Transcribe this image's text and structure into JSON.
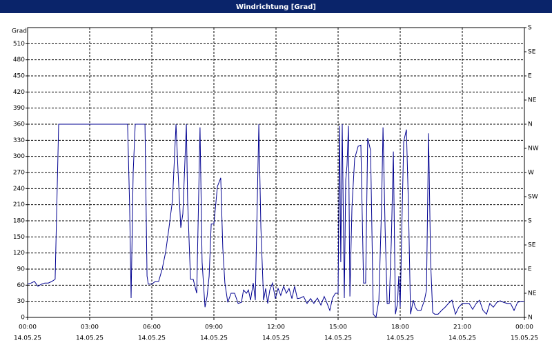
{
  "chart_data": {
    "type": "line",
    "title": "Windrichtung [Grad]",
    "y_label": "Grad",
    "x": [
      0,
      0.17,
      0.33,
      0.5,
      0.67,
      0.83,
      1,
      1.17,
      1.33,
      1.5,
      4.83,
      4.93,
      5,
      5.1,
      5.2,
      5.67,
      5.77,
      5.83,
      6,
      6.17,
      6.33,
      6.5,
      6.67,
      6.83,
      7,
      7.17,
      7.27,
      7.4,
      7.5,
      7.67,
      7.73,
      7.87,
      8,
      8.17,
      8.33,
      8.43,
      8.57,
      8.67,
      8.77,
      8.87,
      9,
      9.17,
      9.33,
      9.43,
      9.53,
      9.67,
      9.83,
      10,
      10.17,
      10.33,
      10.43,
      10.57,
      10.67,
      10.77,
      10.9,
      11,
      11.17,
      11.27,
      11.4,
      11.5,
      11.6,
      11.7,
      11.83,
      11.97,
      12.1,
      12.23,
      12.37,
      12.5,
      12.63,
      12.77,
      12.9,
      13.03,
      13.17,
      13.33,
      13.5,
      13.67,
      13.83,
      14,
      14.17,
      14.33,
      14.47,
      14.6,
      14.73,
      14.87,
      15,
      15.07,
      15.13,
      15.2,
      15.3,
      15.37,
      15.43,
      15.5,
      15.57,
      15.67,
      15.8,
      15.97,
      16.1,
      16.23,
      16.33,
      16.43,
      16.57,
      16.7,
      16.83,
      16.97,
      17.1,
      17.17,
      17.27,
      17.37,
      17.47,
      17.57,
      17.67,
      17.77,
      17.87,
      17.93,
      18,
      18.1,
      18.17,
      18.3,
      18.4,
      18.5,
      18.63,
      18.73,
      18.83,
      19,
      19.17,
      19.27,
      19.37,
      19.47,
      19.57,
      19.67,
      19.83,
      20,
      20.17,
      20.33,
      20.5,
      20.67,
      20.83,
      21,
      21.17,
      21.33,
      21.5,
      21.67,
      21.83,
      22,
      22.17,
      22.33,
      22.5,
      22.67,
      22.83,
      23,
      23.17,
      23.33,
      23.5,
      23.67,
      23.83,
      24
    ],
    "series": [
      {
        "color": "#000090",
        "values": [
          62,
          64,
          67,
          58,
          62,
          64,
          64,
          67,
          71,
          360,
          360,
          206,
          36,
          270,
          360,
          360,
          77,
          62,
          62,
          67,
          67,
          90,
          122,
          167,
          219,
          360,
          270,
          167,
          193,
          360,
          219,
          71,
          71,
          45,
          354,
          103,
          19,
          39,
          77,
          174,
          174,
          244,
          260,
          129,
          64,
          28,
          45,
          45,
          26,
          28,
          51,
          45,
          51,
          32,
          64,
          32,
          360,
          167,
          32,
          54,
          26,
          51,
          64,
          35,
          54,
          41,
          58,
          45,
          54,
          35,
          58,
          35,
          36,
          39,
          26,
          35,
          26,
          36,
          23,
          39,
          26,
          13,
          36,
          45,
          45,
          357,
          103,
          360,
          36,
          257,
          283,
          357,
          39,
          206,
          296,
          319,
          321,
          64,
          64,
          334,
          311,
          6,
          0,
          32,
          206,
          354,
          167,
          26,
          26,
          141,
          309,
          6,
          26,
          77,
          19,
          206,
          328,
          350,
          206,
          6,
          32,
          19,
          13,
          13,
          32,
          51,
          343,
          103,
          9,
          6,
          6,
          13,
          19,
          26,
          32,
          6,
          19,
          26,
          26,
          26,
          15,
          26,
          32,
          13,
          6,
          26,
          19,
          28,
          31,
          28,
          26,
          26,
          13,
          28,
          30,
          30
        ]
      }
    ],
    "xlim": [
      0,
      24
    ],
    "xticks": [
      {
        "value": 0,
        "label": "00:00"
      },
      {
        "value": 3,
        "label": "03:00"
      },
      {
        "value": 6,
        "label": "06:00"
      },
      {
        "value": 9,
        "label": "09:00"
      },
      {
        "value": 12,
        "label": "12:00"
      },
      {
        "value": 15,
        "label": "15:00"
      },
      {
        "value": 18,
        "label": "18:00"
      },
      {
        "value": 21,
        "label": "21:00"
      },
      {
        "value": 24,
        "label": "00:00"
      }
    ],
    "xtick_dates": [
      "14.05.25",
      "14.05.25",
      "14.05.25",
      "14.05.25",
      "14.05.25",
      "14.05.25",
      "14.05.25",
      "14.05.25",
      "15.05.25"
    ],
    "ylim": [
      0,
      540
    ],
    "yticks": [
      0,
      30,
      60,
      90,
      120,
      150,
      180,
      210,
      240,
      270,
      300,
      330,
      360,
      390,
      420,
      450,
      480,
      510
    ],
    "y2lim": [
      0,
      540
    ],
    "y2ticks": [
      {
        "value": 0,
        "label": "N"
      },
      {
        "value": 45,
        "label": "NE"
      },
      {
        "value": 90,
        "label": "E"
      },
      {
        "value": 135,
        "label": "SE"
      },
      {
        "value": 180,
        "label": "S"
      },
      {
        "value": 225,
        "label": "SW"
      },
      {
        "value": 270,
        "label": "W"
      },
      {
        "value": 315,
        "label": "NW"
      },
      {
        "value": 360,
        "label": "N"
      },
      {
        "value": 405,
        "label": "NE"
      },
      {
        "value": 450,
        "label": "E"
      },
      {
        "value": 495,
        "label": "SE"
      },
      {
        "value": 540,
        "label": "S"
      }
    ],
    "grid": true
  }
}
